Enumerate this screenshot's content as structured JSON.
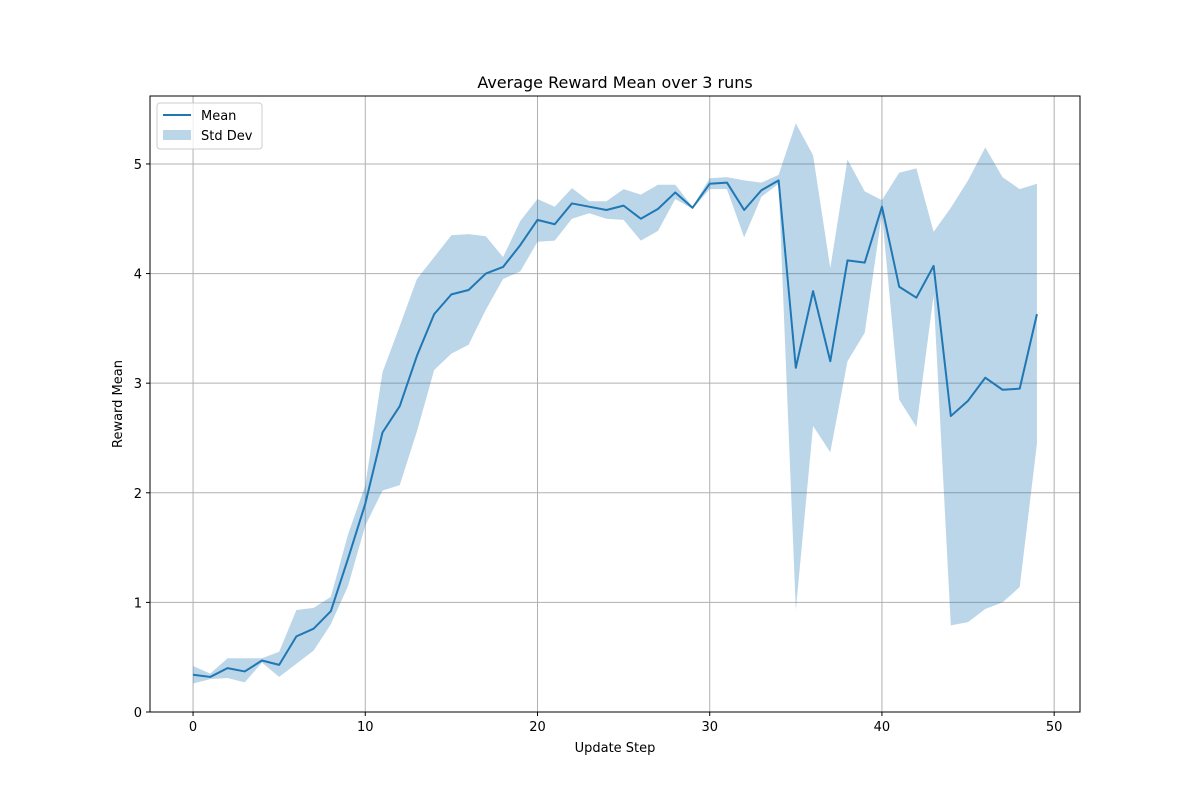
{
  "chart_data": {
    "type": "line",
    "title": "Average Reward Mean over 3 runs",
    "xlabel": "Update Step",
    "ylabel": "Reward Mean",
    "xlim": [
      -2.5,
      51.5
    ],
    "ylim": [
      0,
      5.62
    ],
    "xticks": [
      0,
      10,
      20,
      30,
      40,
      50
    ],
    "yticks": [
      0,
      1,
      2,
      3,
      4,
      5
    ],
    "grid": true,
    "legend_position": "top-left",
    "colors": {
      "line": "#1f77b4",
      "band": "#1f77b4",
      "band_opacity": 0.3,
      "grid": "#b0b0b0"
    },
    "x": [
      0,
      1,
      2,
      3,
      4,
      5,
      6,
      7,
      8,
      9,
      10,
      11,
      12,
      13,
      14,
      15,
      16,
      17,
      18,
      19,
      20,
      21,
      22,
      23,
      24,
      25,
      26,
      27,
      28,
      29,
      30,
      31,
      32,
      33,
      34,
      35,
      36,
      37,
      38,
      39,
      40,
      41,
      42,
      43,
      44,
      45,
      46,
      47,
      48,
      49
    ],
    "series": [
      {
        "name": "Mean",
        "kind": "line",
        "values": [
          0.34,
          0.32,
          0.4,
          0.37,
          0.47,
          0.43,
          0.69,
          0.76,
          0.92,
          1.4,
          1.9,
          2.55,
          2.79,
          3.25,
          3.63,
          3.81,
          3.85,
          4.0,
          4.06,
          4.26,
          4.49,
          4.45,
          4.64,
          4.61,
          4.58,
          4.62,
          4.5,
          4.59,
          4.74,
          4.6,
          4.82,
          4.83,
          4.58,
          4.76,
          4.85,
          3.14,
          3.84,
          3.2,
          4.12,
          4.1,
          4.61,
          3.88,
          3.78,
          4.07,
          2.7,
          2.84,
          3.05,
          2.94,
          2.95,
          3.63
        ]
      },
      {
        "name": "Std Dev",
        "kind": "band",
        "lower": [
          0.26,
          0.3,
          0.31,
          0.27,
          0.45,
          0.32,
          0.44,
          0.56,
          0.8,
          1.15,
          1.7,
          2.02,
          2.07,
          2.56,
          3.12,
          3.27,
          3.35,
          3.67,
          3.95,
          4.02,
          4.29,
          4.3,
          4.5,
          4.55,
          4.5,
          4.49,
          4.3,
          4.39,
          4.68,
          4.59,
          4.77,
          4.77,
          4.33,
          4.7,
          4.82,
          0.93,
          2.61,
          2.37,
          3.2,
          3.46,
          4.55,
          2.85,
          2.6,
          3.8,
          0.79,
          0.82,
          0.94,
          1.0,
          1.14,
          2.45
        ],
        "upper": [
          0.42,
          0.35,
          0.49,
          0.49,
          0.49,
          0.55,
          0.93,
          0.95,
          1.05,
          1.62,
          2.07,
          3.1,
          3.52,
          3.95,
          4.15,
          4.35,
          4.36,
          4.34,
          4.15,
          4.48,
          4.68,
          4.61,
          4.78,
          4.66,
          4.66,
          4.77,
          4.72,
          4.81,
          4.81,
          4.61,
          4.87,
          4.88,
          4.85,
          4.83,
          4.9,
          5.37,
          5.08,
          4.05,
          5.04,
          4.75,
          4.67,
          4.92,
          4.96,
          4.38,
          4.6,
          4.85,
          5.15,
          4.88,
          4.77,
          4.82
        ]
      }
    ]
  }
}
